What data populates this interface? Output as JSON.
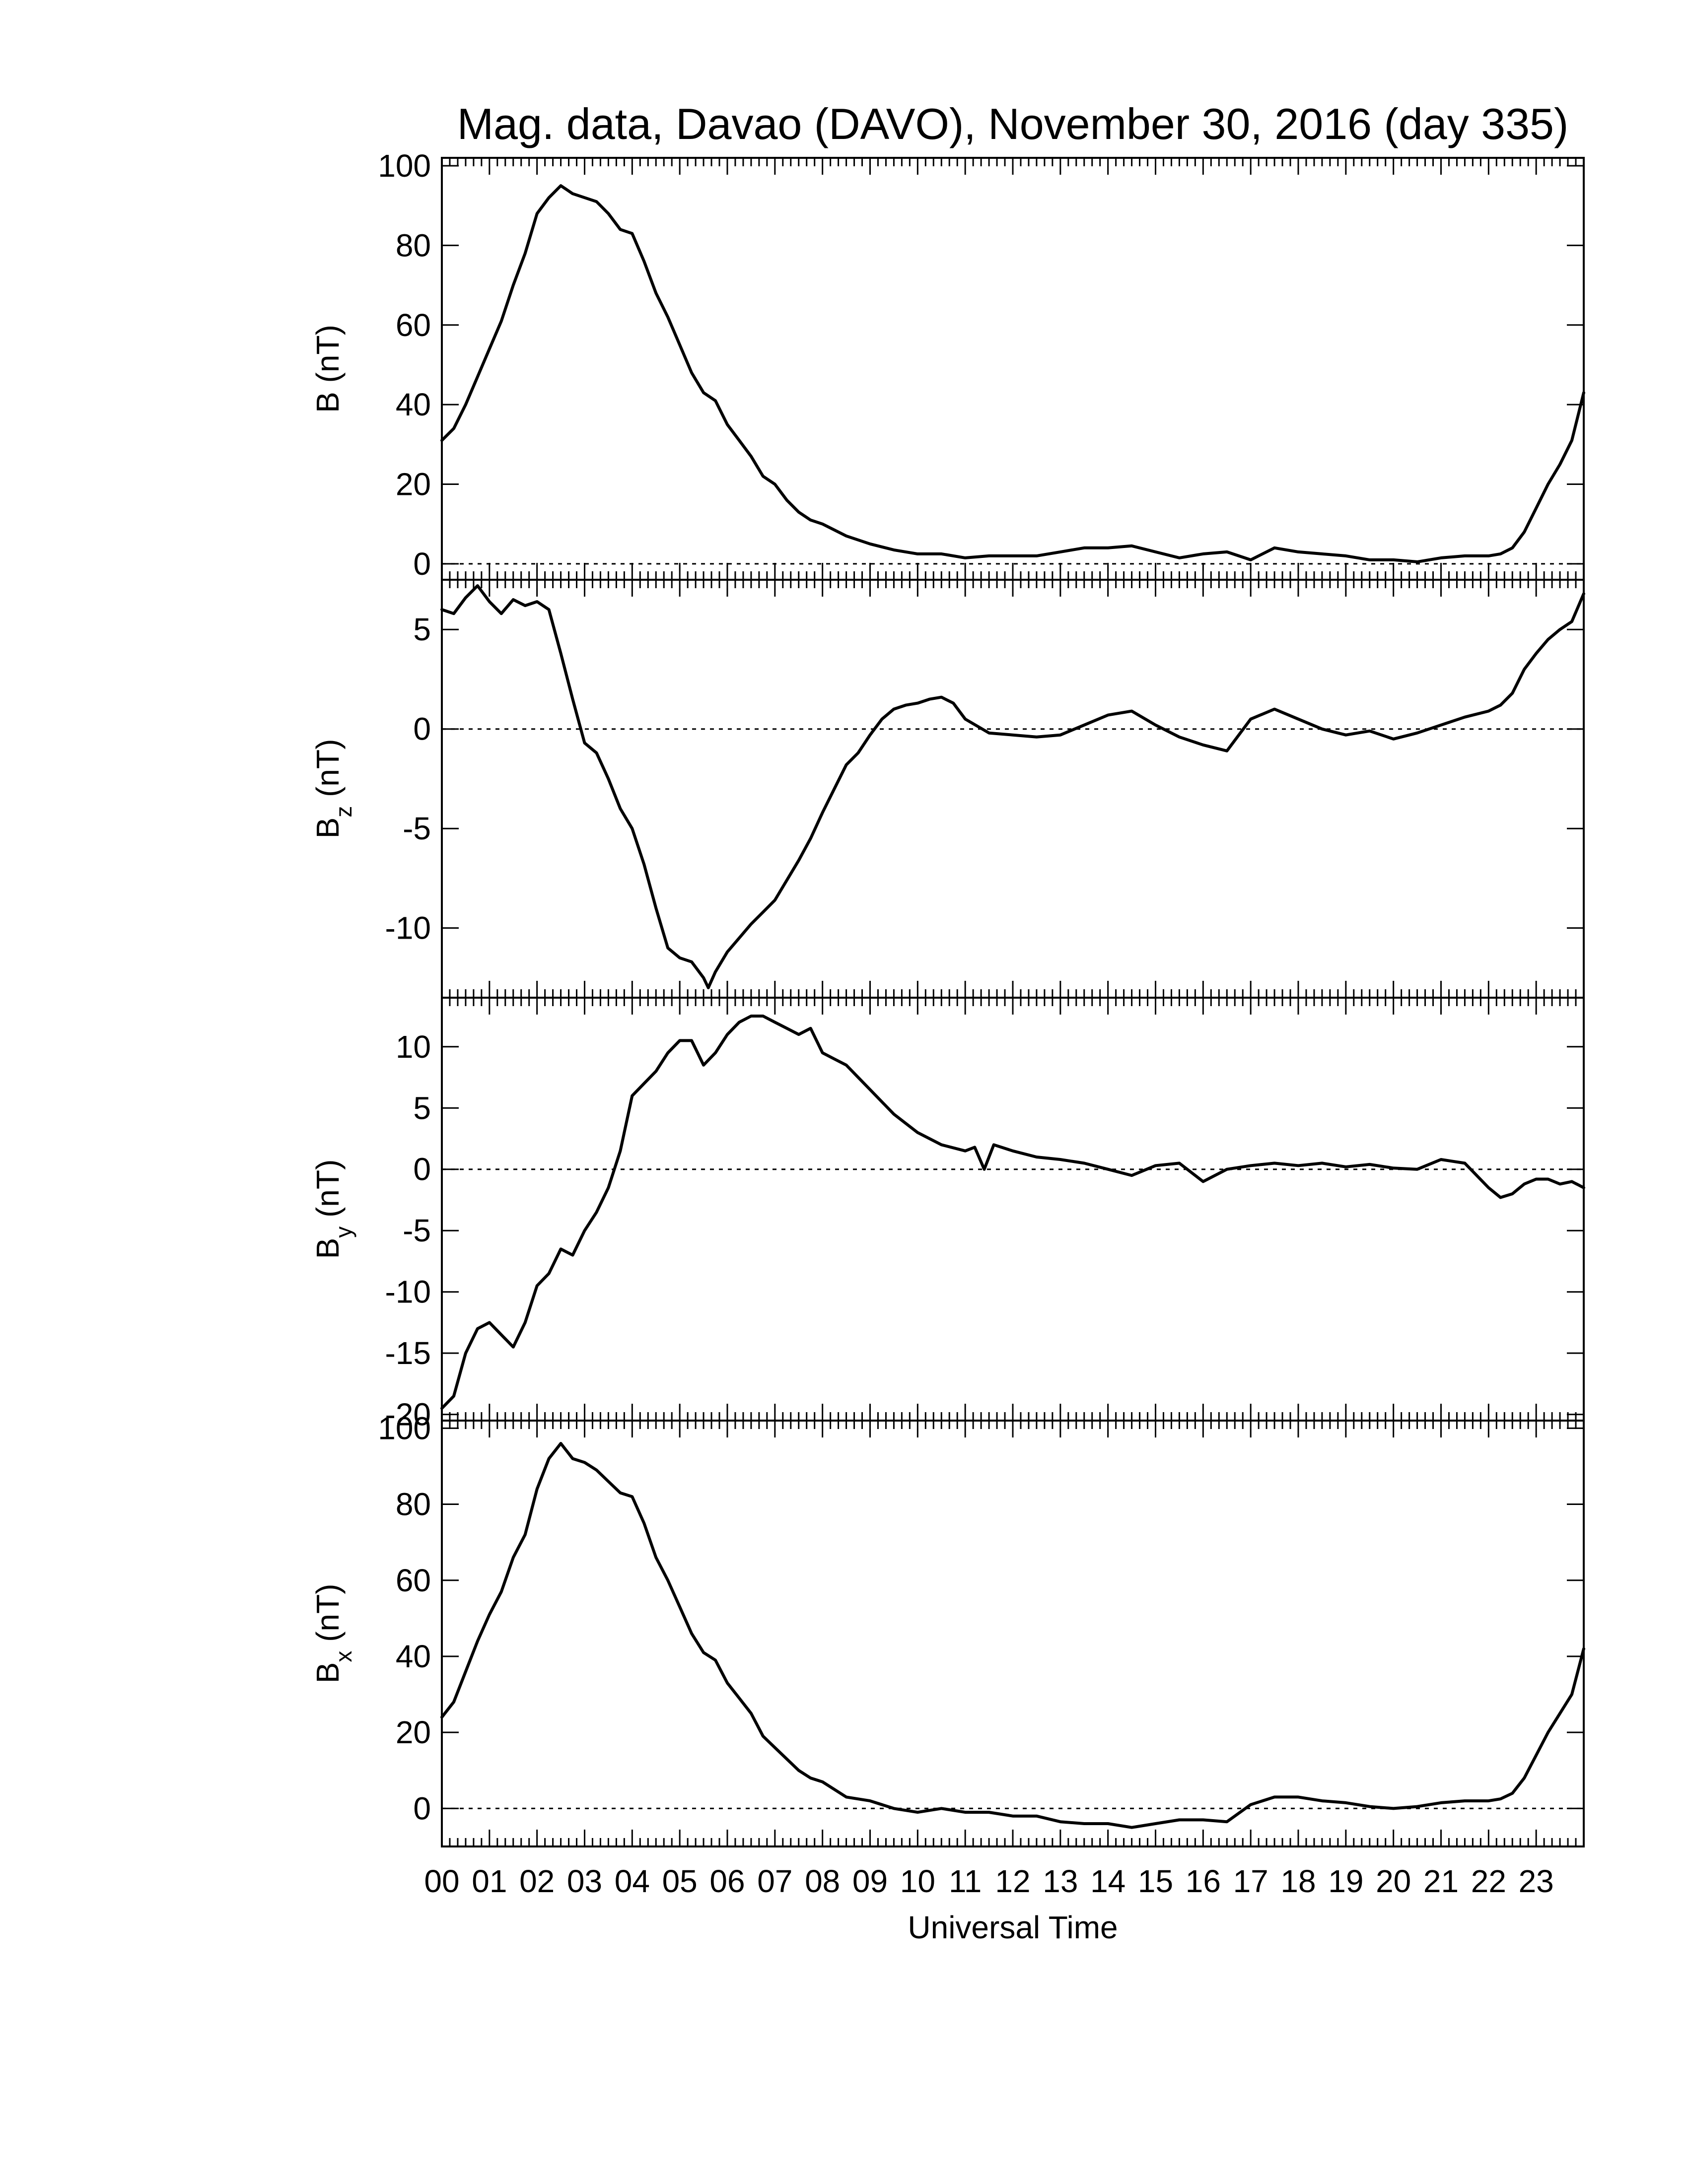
{
  "chart_data": {
    "type": "line",
    "title": "Mag. data, Davao (DAVO), November 30, 2016 (day 335)",
    "xlabel": "Universal Time",
    "x_tick_labels": [
      "00",
      "01",
      "02",
      "03",
      "04",
      "05",
      "06",
      "07",
      "08",
      "09",
      "10",
      "11",
      "12",
      "13",
      "14",
      "15",
      "16",
      "17",
      "18",
      "19",
      "20",
      "21",
      "22",
      "23"
    ],
    "xlim": [
      0,
      24
    ],
    "grid": false,
    "panels": [
      {
        "ylabel_main": "B",
        "ylabel_sub": "",
        "ylabel_unit": "(nT)",
        "ylim": [
          -4,
          102
        ],
        "y_ticks": [
          0,
          20,
          40,
          60,
          80,
          100
        ],
        "y_tick_labels": [
          "0",
          "20",
          "40",
          "60",
          "80",
          "100"
        ],
        "zero_line": true,
        "series": [
          {
            "x": [
              0,
              0.25,
              0.5,
              0.75,
              1,
              1.25,
              1.5,
              1.75,
              2,
              2.25,
              2.5,
              2.75,
              3,
              3.25,
              3.5,
              3.75,
              4,
              4.25,
              4.5,
              4.75,
              5,
              5.25,
              5.5,
              5.75,
              6,
              6.25,
              6.5,
              6.75,
              7,
              7.25,
              7.5,
              7.75,
              8,
              8.5,
              9,
              9.5,
              10,
              10.5,
              11,
              11.5,
              12,
              12.5,
              13,
              13.5,
              14,
              14.5,
              15,
              15.5,
              16,
              16.5,
              17,
              17.5,
              18,
              18.5,
              19,
              19.5,
              20,
              20.5,
              21,
              21.5,
              22,
              22.25,
              22.5,
              22.75,
              23,
              23.25,
              23.5,
              23.75,
              24
            ],
            "y": [
              31,
              34,
              40,
              47,
              54,
              61,
              70,
              78,
              88,
              92,
              95,
              93,
              92,
              91,
              88,
              84,
              83,
              76,
              68,
              62,
              55,
              48,
              43,
              41,
              35,
              31,
              27,
              22,
              20,
              16,
              13,
              11,
              10,
              7,
              5,
              3.5,
              2.5,
              2.5,
              1.5,
              2,
              2,
              2,
              3,
              4,
              4,
              4.5,
              3,
              1.5,
              2.5,
              3,
              1,
              4,
              3,
              2.5,
              2,
              1,
              1,
              0.5,
              1.5,
              2,
              2,
              2.5,
              4,
              8,
              14,
              20,
              25,
              31,
              43
            ]
          }
        ]
      },
      {
        "ylabel_main": "B",
        "ylabel_sub": "z",
        "ylabel_unit": "(nT)",
        "ylim": [
          -13.5,
          7.5
        ],
        "y_ticks": [
          -10,
          -5,
          0,
          5
        ],
        "y_tick_labels": [
          "-10",
          "-5",
          "0",
          "5"
        ],
        "zero_line": true,
        "series": [
          {
            "x": [
              0,
              0.25,
              0.5,
              0.75,
              1,
              1.25,
              1.5,
              1.75,
              2,
              2.25,
              2.5,
              2.75,
              3,
              3.25,
              3.5,
              3.75,
              4,
              4.25,
              4.5,
              4.75,
              5,
              5.25,
              5.5,
              5.6,
              5.75,
              6,
              6.25,
              6.5,
              6.75,
              7,
              7.25,
              7.5,
              7.75,
              8,
              8.25,
              8.5,
              8.75,
              9,
              9.25,
              9.5,
              9.75,
              10,
              10.25,
              10.5,
              10.75,
              11,
              11.5,
              12,
              12.5,
              13,
              13.5,
              14,
              14.5,
              15,
              15.5,
              16,
              16.5,
              17,
              17.5,
              18,
              18.5,
              19,
              19.5,
              20,
              20.5,
              21,
              21.5,
              22,
              22.25,
              22.5,
              22.75,
              23,
              23.25,
              23.5,
              23.75,
              24
            ],
            "y": [
              6,
              5.8,
              6.6,
              7.2,
              6.4,
              5.8,
              6.5,
              6.2,
              6.4,
              6,
              3.8,
              1.5,
              -0.7,
              -1.2,
              -2.5,
              -4,
              -5,
              -6.8,
              -9,
              -11,
              -11.5,
              -11.7,
              -12.5,
              -13,
              -12.2,
              -11.2,
              -10.5,
              -9.8,
              -9.2,
              -8.6,
              -7.6,
              -6.6,
              -5.5,
              -4.2,
              -3,
              -1.8,
              -1.2,
              -0.3,
              0.5,
              1,
              1.2,
              1.3,
              1.5,
              1.6,
              1.3,
              0.5,
              -0.2,
              -0.3,
              -0.4,
              -0.3,
              0.2,
              0.7,
              0.9,
              0.2,
              -0.4,
              -0.8,
              -1.1,
              0.5,
              1,
              0.5,
              0,
              -0.3,
              -0.1,
              -0.5,
              -0.2,
              0.2,
              0.6,
              0.9,
              1.2,
              1.8,
              3,
              3.8,
              4.5,
              5,
              5.4,
              6.8
            ]
          }
        ]
      },
      {
        "ylabel_main": "B",
        "ylabel_sub": "y",
        "ylabel_unit": "(nT)",
        "ylim": [
          -20.5,
          14
        ],
        "y_ticks": [
          -20,
          -15,
          -10,
          -5,
          0,
          5,
          10
        ],
        "y_tick_labels": [
          "-20",
          "-15",
          "-10",
          "-5",
          "0",
          "5",
          "10"
        ],
        "zero_line": true,
        "series": [
          {
            "x": [
              0,
              0.25,
              0.5,
              0.75,
              1,
              1.25,
              1.5,
              1.75,
              2,
              2.25,
              2.5,
              2.75,
              3,
              3.25,
              3.5,
              3.75,
              4,
              4.25,
              4.5,
              4.75,
              5,
              5.25,
              5.5,
              5.75,
              6,
              6.25,
              6.5,
              6.75,
              7,
              7.25,
              7.5,
              7.75,
              8,
              8.25,
              8.5,
              8.75,
              9,
              9.5,
              10,
              10.5,
              11,
              11.2,
              11.4,
              11.6,
              12,
              12.5,
              13,
              13.5,
              14,
              14.5,
              15,
              15.5,
              16,
              16.5,
              17,
              17.5,
              18,
              18.5,
              19,
              19.5,
              20,
              20.5,
              21,
              21.5,
              22,
              22.25,
              22.5,
              22.75,
              23,
              23.25,
              23.5,
              23.75,
              24
            ],
            "y": [
              -19.5,
              -18.5,
              -15,
              -13,
              -12.5,
              -13.5,
              -14.5,
              -12.5,
              -9.5,
              -8.5,
              -6.5,
              -7,
              -5,
              -3.5,
              -1.5,
              1.5,
              6,
              7,
              8,
              9.5,
              10.5,
              10.5,
              8.5,
              9.5,
              11,
              12,
              12.5,
              12.5,
              12,
              11.5,
              11,
              11.5,
              9.5,
              9,
              8.5,
              7.5,
              6.5,
              4.5,
              3,
              2,
              1.5,
              1.8,
              0,
              2,
              1.5,
              1,
              0.8,
              0.5,
              0,
              -0.5,
              0.3,
              0.5,
              -1,
              0,
              0.3,
              0.5,
              0.3,
              0.5,
              0.2,
              0.4,
              0.1,
              0,
              0.8,
              0.5,
              -1.5,
              -2.3,
              -2,
              -1.2,
              -0.8,
              -0.8,
              -1.2,
              -1,
              -1.5
            ]
          }
        ]
      },
      {
        "ylabel_main": "B",
        "ylabel_sub": "x",
        "ylabel_unit": "(nT)",
        "ylim": [
          -10,
          102
        ],
        "y_ticks": [
          0,
          20,
          40,
          60,
          80,
          100
        ],
        "y_tick_labels": [
          "0",
          "20",
          "40",
          "60",
          "80",
          "100"
        ],
        "zero_line": true,
        "series": [
          {
            "x": [
              0,
              0.25,
              0.5,
              0.75,
              1,
              1.25,
              1.5,
              1.75,
              2,
              2.25,
              2.5,
              2.75,
              3,
              3.25,
              3.5,
              3.75,
              4,
              4.25,
              4.5,
              4.75,
              5,
              5.25,
              5.5,
              5.75,
              6,
              6.25,
              6.5,
              6.75,
              7,
              7.25,
              7.5,
              7.75,
              8,
              8.5,
              9,
              9.5,
              10,
              10.5,
              11,
              11.5,
              12,
              12.5,
              13,
              13.5,
              14,
              14.5,
              15,
              15.5,
              16,
              16.5,
              17,
              17.5,
              18,
              18.5,
              19,
              19.5,
              20,
              20.5,
              21,
              21.5,
              22,
              22.25,
              22.5,
              22.75,
              23,
              23.25,
              23.5,
              23.75,
              24
            ],
            "y": [
              24,
              28,
              36,
              44,
              51,
              57,
              66,
              72,
              84,
              92,
              96,
              92,
              91,
              89,
              86,
              83,
              82,
              75,
              66,
              60,
              53,
              46,
              41,
              39,
              33,
              29,
              25,
              19,
              16,
              13,
              10,
              8,
              7,
              3,
              2,
              0,
              -1,
              0,
              -1,
              -1,
              -2,
              -2,
              -3.5,
              -4,
              -4,
              -5,
              -4,
              -3,
              -3,
              -3.5,
              1,
              3,
              3,
              2,
              1.5,
              0.5,
              0,
              0.5,
              1.5,
              2,
              2,
              2.5,
              4,
              8,
              14,
              20,
              25,
              30,
              42
            ]
          }
        ]
      }
    ]
  }
}
